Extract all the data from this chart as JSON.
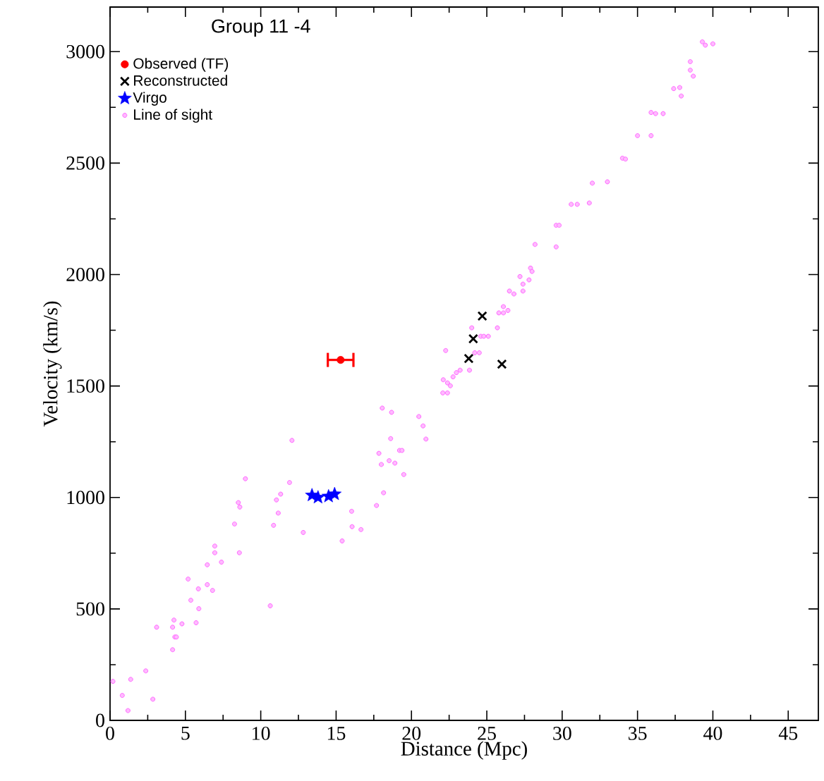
{
  "chart_data": {
    "type": "scatter",
    "legend_title": "Group 11 -4",
    "xlabel": "Distance (Mpc)",
    "ylabel": "Velocity (km/s)",
    "xlim": [
      0,
      47
    ],
    "ylim": [
      0,
      3200
    ],
    "xticks": [
      0,
      5,
      10,
      15,
      20,
      25,
      30,
      35,
      40,
      45
    ],
    "yticks": [
      0,
      500,
      1000,
      1500,
      2000,
      2500,
      3000
    ],
    "grid": false,
    "legend": "top left",
    "series": [
      {
        "name": "Observed (TF)",
        "color": "#ff0000",
        "marker": "circle",
        "x": [
          15.3
        ],
        "values": [
          1617
        ],
        "xerrors": [
          0.85
        ]
      },
      {
        "name": "Reconstructed",
        "color": "#000000",
        "marker": "cross",
        "x": [
          24.7,
          24.1,
          23.8,
          26.0
        ],
        "values": [
          1814,
          1712,
          1623,
          1598
        ]
      },
      {
        "name": "Virgo",
        "color": "#0000ff",
        "marker": "star",
        "x": [
          13.4,
          13.8,
          14.5,
          14.9
        ],
        "values": [
          1010,
          1000,
          1005,
          1015
        ]
      },
      {
        "name": "Line of sight",
        "color": "#ff66ff",
        "marker": "circle",
        "x": [
          0.19,
          0.81,
          1.19,
          1.37,
          2.37,
          2.84,
          3.09,
          4.15,
          4.24,
          4.15,
          4.3,
          4.4,
          4.77,
          5.18,
          5.36,
          5.71,
          5.86,
          5.89,
          6.45,
          6.45,
          6.8,
          6.95,
          6.95,
          7.39,
          8.26,
          8.51,
          8.61,
          8.58,
          8.98,
          10.63,
          10.85,
          11.04,
          11.16,
          11.32,
          11.91,
          12.07,
          12.82,
          16.03,
          16.06,
          16.65,
          15.4,
          17.68,
          17.84,
          18.0,
          18.06,
          18.15,
          18.52,
          18.62,
          18.68,
          18.9,
          19.21,
          19.37,
          19.49,
          20.49,
          20.77,
          20.96,
          22.08,
          22.39,
          22.11,
          22.27,
          22.39,
          22.58,
          22.76,
          22.98,
          23.23,
          23.85,
          24.0,
          24.2,
          24.5,
          24.6,
          24.8,
          25.1,
          25.7,
          25.8,
          26.1,
          26.4,
          26.1,
          26.5,
          26.8,
          27.2,
          27.4,
          27.4,
          27.8,
          27.9,
          28.0,
          28.2,
          29.6,
          29.6,
          29.8,
          30.6,
          31.0,
          31.8,
          32.0,
          33.0,
          34.0,
          34.2,
          35.0,
          35.9,
          35.9,
          36.2,
          36.7,
          37.4,
          37.8,
          37.9,
          38.5,
          38.7,
          38.5,
          39.3,
          39.5,
          40.0
        ],
        "values": [
          175,
          112,
          44,
          184,
          222,
          95,
          418,
          317,
          450,
          418,
          374,
          374,
          433,
          634,
          539,
          438,
          590,
          501,
          698,
          609,
          583,
          782,
          752,
          710,
          881,
          977,
          957,
          752,
          1084,
          514,
          875,
          989,
          930,
          1015,
          1067,
          1256,
          843,
          938,
          869,
          856,
          805,
          964,
          1198,
          1148,
          1401,
          1021,
          1165,
          1264,
          1382,
          1154,
          1211,
          1211,
          1103,
          1363,
          1321,
          1262,
          1469,
          1469,
          1528,
          1659,
          1514,
          1501,
          1541,
          1560,
          1571,
          1571,
          1761,
          1649,
          1649,
          1723,
          1723,
          1723,
          1761,
          1828,
          1828,
          1839,
          1856,
          1926,
          1913,
          1991,
          1957,
          1926,
          1976,
          2029,
          2014,
          2135,
          2124,
          2221,
          2221,
          2315,
          2315,
          2321,
          2410,
          2416,
          2522,
          2518,
          2623,
          2623,
          2727,
          2722,
          2722,
          2834,
          2839,
          2801,
          2917,
          2890,
          2955,
          3044,
          3029,
          3035
        ]
      }
    ]
  }
}
